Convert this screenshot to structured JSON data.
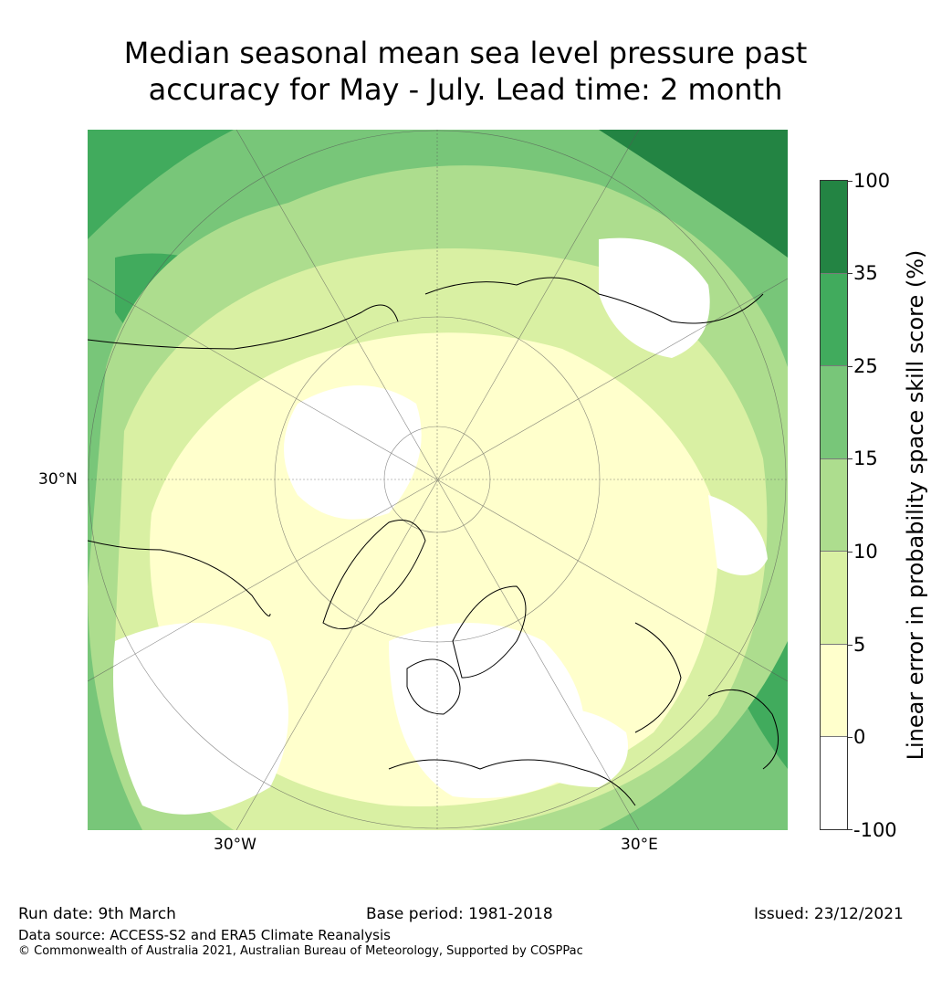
{
  "title": {
    "line1": "Median seasonal mean sea level pressure past",
    "line2": "accuracy for May - July. Lead time: 2 month"
  },
  "map": {
    "projection": "north polar stereographic",
    "lat_labels": [
      "30°N"
    ],
    "lon_labels": [
      "30°W",
      "30°E"
    ]
  },
  "colorbar": {
    "label": "Linear error in probability space skill score (%)",
    "ticks": [
      "100",
      "35",
      "25",
      "15",
      "10",
      "5",
      "0",
      "-100"
    ],
    "bins": [
      {
        "range": "35 to 100",
        "color": "#238443"
      },
      {
        "range": "25 to 35",
        "color": "#41ab5d"
      },
      {
        "range": "15 to 25",
        "color": "#78c679"
      },
      {
        "range": "10 to 15",
        "color": "#addd8e"
      },
      {
        "range": "5 to 10",
        "color": "#d9f0a3"
      },
      {
        "range": "0 to 5",
        "color": "#ffffcc"
      },
      {
        "range": "-100 to 0",
        "color": "#ffffff"
      }
    ]
  },
  "footer": {
    "run_date": "Run date: 9th March",
    "base_period": "Base period: 1981-2018",
    "issued": "Issued: 23/12/2021",
    "data_source": "Data source: ACCESS-S2 and ERA5 Climate Reanalysis",
    "copyright": "© Commonwealth of Australia 2021, Australian Bureau of Meteorology, Supported by COSPPac"
  }
}
